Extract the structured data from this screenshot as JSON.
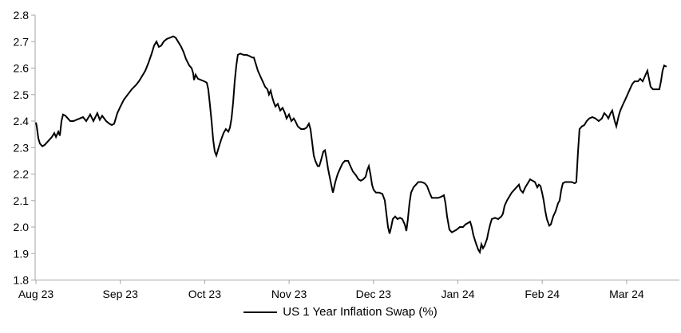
{
  "colors": {
    "background": "#ffffff",
    "line": "#000000",
    "axis": "#a6a6a6",
    "text": "#000000"
  },
  "chart_data": {
    "type": "line",
    "title": "",
    "xlabel": "",
    "ylabel": "",
    "grid": false,
    "legend_position": "bottom-center",
    "ylim": [
      1.8,
      2.8
    ],
    "y_ticks": [
      1.8,
      1.9,
      2.0,
      2.1,
      2.2,
      2.3,
      2.4,
      2.5,
      2.6,
      2.7,
      2.8
    ],
    "y_tick_labels": [
      "1.8",
      "1.9",
      "2.0",
      "2.1",
      "2.2",
      "2.3",
      "2.4",
      "2.5",
      "2.6",
      "2.7",
      "2.8"
    ],
    "x_tick_labels": [
      "Aug 23",
      "Sep 23",
      "Oct 23",
      "Nov 23",
      "Dec 23",
      "Jan 24",
      "Feb 24",
      "Mar 24"
    ],
    "x_unit": "months_since_aug_2023_tick",
    "series": [
      {
        "name": "US 1 Year Inflation Swap (%)",
        "points": [
          [
            0,
            2.395
          ],
          [
            0.009,
            2.38
          ],
          [
            0.028,
            2.335
          ],
          [
            0.047,
            2.315
          ],
          [
            0.076,
            2.305
          ],
          [
            0.104,
            2.31
          ],
          [
            0.132,
            2.32
          ],
          [
            0.161,
            2.33
          ],
          [
            0.189,
            2.34
          ],
          [
            0.218,
            2.355
          ],
          [
            0.237,
            2.34
          ],
          [
            0.265,
            2.36
          ],
          [
            0.284,
            2.345
          ],
          [
            0.303,
            2.4
          ],
          [
            0.322,
            2.425
          ],
          [
            0.35,
            2.42
          ],
          [
            0.378,
            2.41
          ],
          [
            0.407,
            2.4
          ],
          [
            0.445,
            2.4
          ],
          [
            0.482,
            2.405
          ],
          [
            0.52,
            2.41
          ],
          [
            0.558,
            2.415
          ],
          [
            0.596,
            2.4
          ],
          [
            0.643,
            2.425
          ],
          [
            0.681,
            2.4
          ],
          [
            0.728,
            2.43
          ],
          [
            0.757,
            2.405
          ],
          [
            0.785,
            2.42
          ],
          [
            0.833,
            2.4
          ],
          [
            0.87,
            2.39
          ],
          [
            0.899,
            2.385
          ],
          [
            0.927,
            2.39
          ],
          [
            0.965,
            2.43
          ],
          [
            0.993,
            2.45
          ],
          [
            1.041,
            2.48
          ],
          [
            1.088,
            2.5
          ],
          [
            1.135,
            2.52
          ],
          [
            1.183,
            2.535
          ],
          [
            1.22,
            2.55
          ],
          [
            1.258,
            2.57
          ],
          [
            1.296,
            2.59
          ],
          [
            1.334,
            2.62
          ],
          [
            1.372,
            2.655
          ],
          [
            1.4,
            2.685
          ],
          [
            1.429,
            2.7
          ],
          [
            1.457,
            2.68
          ],
          [
            1.485,
            2.685
          ],
          [
            1.514,
            2.7
          ],
          [
            1.551,
            2.71
          ],
          [
            1.589,
            2.715
          ],
          [
            1.627,
            2.72
          ],
          [
            1.656,
            2.715
          ],
          [
            1.684,
            2.7
          ],
          [
            1.722,
            2.68
          ],
          [
            1.75,
            2.66
          ],
          [
            1.778,
            2.635
          ],
          [
            1.816,
            2.61
          ],
          [
            1.845,
            2.6
          ],
          [
            1.864,
            2.58
          ],
          [
            1.873,
            2.555
          ],
          [
            1.892,
            2.575
          ],
          [
            1.92,
            2.56
          ],
          [
            1.958,
            2.555
          ],
          [
            1.996,
            2.55
          ],
          [
            2.025,
            2.545
          ],
          [
            2.043,
            2.52
          ],
          [
            2.062,
            2.46
          ],
          [
            2.081,
            2.4
          ],
          [
            2.1,
            2.33
          ],
          [
            2.119,
            2.285
          ],
          [
            2.138,
            2.27
          ],
          [
            2.166,
            2.3
          ],
          [
            2.195,
            2.33
          ],
          [
            2.223,
            2.355
          ],
          [
            2.251,
            2.37
          ],
          [
            2.28,
            2.36
          ],
          [
            2.299,
            2.375
          ],
          [
            2.318,
            2.41
          ],
          [
            2.337,
            2.47
          ],
          [
            2.356,
            2.55
          ],
          [
            2.375,
            2.61
          ],
          [
            2.393,
            2.65
          ],
          [
            2.422,
            2.655
          ],
          [
            2.46,
            2.65
          ],
          [
            2.497,
            2.65
          ],
          [
            2.535,
            2.645
          ],
          [
            2.564,
            2.64
          ],
          [
            2.583,
            2.64
          ],
          [
            2.602,
            2.62
          ],
          [
            2.63,
            2.59
          ],
          [
            2.658,
            2.57
          ],
          [
            2.687,
            2.55
          ],
          [
            2.715,
            2.53
          ],
          [
            2.744,
            2.52
          ],
          [
            2.762,
            2.5
          ],
          [
            2.781,
            2.515
          ],
          [
            2.8,
            2.49
          ],
          [
            2.819,
            2.47
          ],
          [
            2.838,
            2.455
          ],
          [
            2.866,
            2.465
          ],
          [
            2.895,
            2.44
          ],
          [
            2.923,
            2.45
          ],
          [
            2.951,
            2.43
          ],
          [
            2.97,
            2.41
          ],
          [
            2.999,
            2.425
          ],
          [
            3.027,
            2.4
          ],
          [
            3.055,
            2.41
          ],
          [
            3.074,
            2.4
          ],
          [
            3.103,
            2.38
          ],
          [
            3.141,
            2.37
          ],
          [
            3.178,
            2.37
          ],
          [
            3.207,
            2.375
          ],
          [
            3.235,
            2.39
          ],
          [
            3.254,
            2.37
          ],
          [
            3.273,
            2.32
          ],
          [
            3.292,
            2.27
          ],
          [
            3.311,
            2.25
          ],
          [
            3.339,
            2.23
          ],
          [
            3.358,
            2.23
          ],
          [
            3.377,
            2.25
          ],
          [
            3.406,
            2.285
          ],
          [
            3.425,
            2.29
          ],
          [
            3.443,
            2.26
          ],
          [
            3.462,
            2.22
          ],
          [
            3.481,
            2.19
          ],
          [
            3.5,
            2.16
          ],
          [
            3.519,
            2.13
          ],
          [
            3.548,
            2.17
          ],
          [
            3.576,
            2.2
          ],
          [
            3.604,
            2.22
          ],
          [
            3.633,
            2.24
          ],
          [
            3.661,
            2.25
          ],
          [
            3.699,
            2.25
          ],
          [
            3.727,
            2.23
          ],
          [
            3.756,
            2.21
          ],
          [
            3.794,
            2.195
          ],
          [
            3.822,
            2.18
          ],
          [
            3.85,
            2.175
          ],
          [
            3.879,
            2.18
          ],
          [
            3.907,
            2.19
          ],
          [
            3.926,
            2.215
          ],
          [
            3.945,
            2.23
          ],
          [
            3.964,
            2.2
          ],
          [
            3.983,
            2.16
          ],
          [
            4.002,
            2.14
          ],
          [
            4.03,
            2.13
          ],
          [
            4.068,
            2.13
          ],
          [
            4.106,
            2.125
          ],
          [
            4.134,
            2.1
          ],
          [
            4.153,
            2.05
          ],
          [
            4.172,
            2.0
          ],
          [
            4.191,
            1.975
          ],
          [
            4.21,
            2.0
          ],
          [
            4.229,
            2.03
          ],
          [
            4.257,
            2.04
          ],
          [
            4.285,
            2.03
          ],
          [
            4.314,
            2.035
          ],
          [
            4.342,
            2.03
          ],
          [
            4.371,
            2.01
          ],
          [
            4.39,
            1.985
          ],
          [
            4.408,
            2.03
          ],
          [
            4.427,
            2.09
          ],
          [
            4.446,
            2.13
          ],
          [
            4.475,
            2.15
          ],
          [
            4.503,
            2.16
          ],
          [
            4.531,
            2.17
          ],
          [
            4.569,
            2.17
          ],
          [
            4.607,
            2.165
          ],
          [
            4.635,
            2.155
          ],
          [
            4.664,
            2.13
          ],
          [
            4.692,
            2.11
          ],
          [
            4.73,
            2.11
          ],
          [
            4.768,
            2.11
          ],
          [
            4.806,
            2.115
          ],
          [
            4.834,
            2.12
          ],
          [
            4.853,
            2.09
          ],
          [
            4.872,
            2.04
          ],
          [
            4.9,
            1.99
          ],
          [
            4.929,
            1.98
          ],
          [
            4.957,
            1.985
          ],
          [
            4.986,
            1.99
          ],
          [
            5.023,
            2.0
          ],
          [
            5.061,
            2.0
          ],
          [
            5.09,
            2.01
          ],
          [
            5.118,
            2.015
          ],
          [
            5.146,
            2.02
          ],
          [
            5.165,
            2.0
          ],
          [
            5.184,
            1.97
          ],
          [
            5.213,
            1.94
          ],
          [
            5.241,
            1.915
          ],
          [
            5.26,
            1.905
          ],
          [
            5.279,
            1.935
          ],
          [
            5.298,
            1.92
          ],
          [
            5.317,
            1.93
          ],
          [
            5.345,
            1.955
          ],
          [
            5.364,
            1.985
          ],
          [
            5.383,
            2.01
          ],
          [
            5.402,
            2.03
          ],
          [
            5.44,
            2.035
          ],
          [
            5.478,
            2.03
          ],
          [
            5.516,
            2.04
          ],
          [
            5.534,
            2.05
          ],
          [
            5.553,
            2.08
          ],
          [
            5.582,
            2.1
          ],
          [
            5.61,
            2.115
          ],
          [
            5.638,
            2.13
          ],
          [
            5.667,
            2.14
          ],
          [
            5.695,
            2.15
          ],
          [
            5.724,
            2.16
          ],
          [
            5.742,
            2.14
          ],
          [
            5.771,
            2.13
          ],
          [
            5.799,
            2.15
          ],
          [
            5.828,
            2.165
          ],
          [
            5.856,
            2.18
          ],
          [
            5.884,
            2.175
          ],
          [
            5.913,
            2.17
          ],
          [
            5.941,
            2.15
          ],
          [
            5.96,
            2.16
          ],
          [
            5.979,
            2.155
          ],
          [
            5.998,
            2.13
          ],
          [
            6.017,
            2.1
          ],
          [
            6.036,
            2.06
          ],
          [
            6.055,
            2.03
          ],
          [
            6.083,
            2.005
          ],
          [
            6.102,
            2.01
          ],
          [
            6.13,
            2.04
          ],
          [
            6.159,
            2.06
          ],
          [
            6.187,
            2.09
          ],
          [
            6.206,
            2.1
          ],
          [
            6.225,
            2.14
          ],
          [
            6.244,
            2.165
          ],
          [
            6.272,
            2.17
          ],
          [
            6.31,
            2.17
          ],
          [
            6.348,
            2.17
          ],
          [
            6.385,
            2.165
          ],
          [
            6.404,
            2.17
          ],
          [
            6.423,
            2.28
          ],
          [
            6.442,
            2.37
          ],
          [
            6.47,
            2.38
          ],
          [
            6.499,
            2.385
          ],
          [
            6.527,
            2.4
          ],
          [
            6.556,
            2.41
          ],
          [
            6.594,
            2.415
          ],
          [
            6.631,
            2.41
          ],
          [
            6.669,
            2.4
          ],
          [
            6.707,
            2.41
          ],
          [
            6.735,
            2.43
          ],
          [
            6.764,
            2.42
          ],
          [
            6.783,
            2.41
          ],
          [
            6.811,
            2.43
          ],
          [
            6.83,
            2.44
          ],
          [
            6.859,
            2.4
          ],
          [
            6.878,
            2.38
          ],
          [
            6.906,
            2.42
          ],
          [
            6.925,
            2.44
          ],
          [
            6.953,
            2.46
          ],
          [
            6.982,
            2.48
          ],
          [
            7.01,
            2.5
          ],
          [
            7.038,
            2.52
          ],
          [
            7.067,
            2.54
          ],
          [
            7.095,
            2.55
          ],
          [
            7.133,
            2.55
          ],
          [
            7.161,
            2.56
          ],
          [
            7.19,
            2.55
          ],
          [
            7.218,
            2.57
          ],
          [
            7.246,
            2.59
          ],
          [
            7.265,
            2.56
          ],
          [
            7.284,
            2.53
          ],
          [
            7.312,
            2.52
          ],
          [
            7.35,
            2.52
          ],
          [
            7.388,
            2.52
          ],
          [
            7.407,
            2.55
          ],
          [
            7.426,
            2.59
          ],
          [
            7.445,
            2.61
          ],
          [
            7.473,
            2.605
          ]
        ]
      }
    ]
  }
}
